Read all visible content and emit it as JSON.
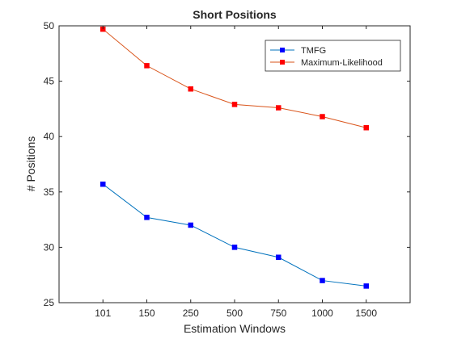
{
  "chart_data": {
    "type": "line",
    "title": "Short Positions",
    "xlabel": "Estimation Windows",
    "ylabel": "# Positions",
    "categories": [
      "101",
      "150",
      "250",
      "500",
      "750",
      "1000",
      "1500"
    ],
    "ylim": [
      25,
      50
    ],
    "yticks": [
      "25",
      "30",
      "35",
      "40",
      "45",
      "50"
    ],
    "grid": false,
    "legend_position": "top-right",
    "series": [
      {
        "name": "TMFG",
        "color": "#0072BD",
        "marker_color": "#0000FF",
        "values": [
          35.7,
          32.7,
          32.0,
          30.0,
          29.1,
          27.0,
          26.5
        ]
      },
      {
        "name": "Maximum-Likelihood",
        "color": "#D95319",
        "marker_color": "#FF0000",
        "values": [
          49.7,
          46.4,
          44.3,
          42.9,
          42.6,
          41.8,
          40.8
        ]
      }
    ]
  }
}
